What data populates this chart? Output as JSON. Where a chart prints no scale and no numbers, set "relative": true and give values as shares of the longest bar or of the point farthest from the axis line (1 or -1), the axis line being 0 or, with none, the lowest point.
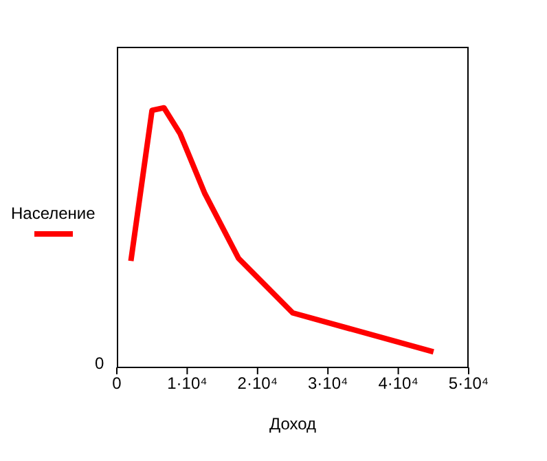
{
  "chart_data": {
    "type": "line",
    "xlabel": "Доход",
    "relative": true,
    "x": [
      2000,
      5000,
      6700,
      9000,
      12500,
      17300,
      25000,
      45000
    ],
    "series": [
      {
        "name": "Население",
        "color": "#ff0000",
        "values": [
          0.41,
          0.99,
          1,
          0.9,
          0.67,
          0.42,
          0.21,
          0.06
        ]
      }
    ],
    "xlim": [
      0,
      50000
    ],
    "xticks": [
      0,
      {
        "value": 10000,
        "label": "1·10⁴"
      },
      {
        "value": 20000,
        "label": "2·10⁴"
      },
      {
        "value": 30000,
        "label": "3·10⁴"
      },
      {
        "value": 40000,
        "label": "4·10⁴"
      },
      {
        "value": 50000,
        "label": "5·10⁴"
      }
    ],
    "annotations": [
      "0"
    ],
    "legend": "left",
    "marker": "none",
    "line_style": "solid"
  }
}
